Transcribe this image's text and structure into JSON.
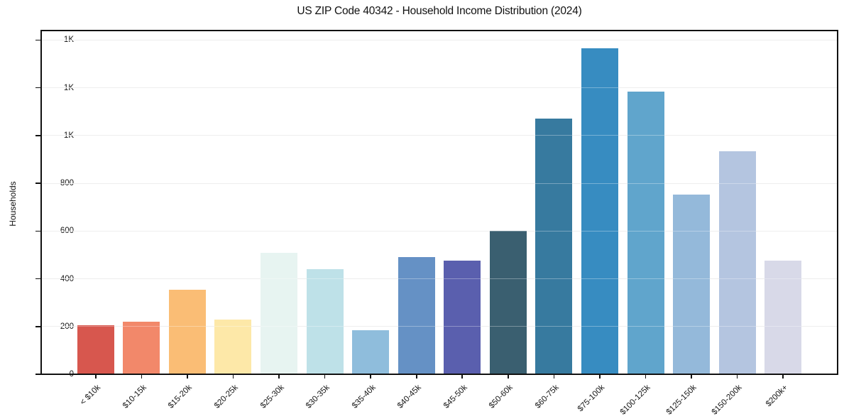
{
  "chart_data": {
    "type": "bar",
    "title": "US ZIP Code 40342 - Household Income Distribution (2024)",
    "xlabel": "",
    "ylabel": "Households",
    "categories": [
      "< $10k",
      "$10-15k",
      "$15-20k",
      "$20-25k",
      "$25-30k",
      "$30-35k",
      "$35-40k",
      "$40-45k",
      "$45-50k",
      "$50-60k",
      "$60-75k",
      "$75-100k",
      "$100-125k",
      "$125-150k",
      "$150-200k",
      "$200k+"
    ],
    "values": [
      205,
      220,
      355,
      230,
      508,
      440,
      185,
      490,
      475,
      602,
      1072,
      1367,
      1183,
      752,
      935,
      475
    ],
    "bar_colors": [
      "#d7574e",
      "#f2886a",
      "#fabd75",
      "#fde8a8",
      "#e7f4f1",
      "#bee1e8",
      "#8fbddc",
      "#6591c5",
      "#5a5fae",
      "#3a5f70",
      "#377a9f",
      "#378cc1",
      "#60a5cc",
      "#94b9da",
      "#b4c5e0",
      "#d8d9e8"
    ],
    "ytick_values": [
      0,
      200,
      400,
      600,
      800,
      1000,
      1200,
      1400
    ],
    "ytick_labels": [
      "0",
      "200",
      "400",
      "600",
      "800",
      "1K",
      "1K",
      "1K"
    ],
    "ylim": [
      0,
      1440
    ],
    "grid": "horizontal",
    "gridline_color": "#e6e6e6",
    "axis_color": "#111111",
    "legend": "none"
  }
}
